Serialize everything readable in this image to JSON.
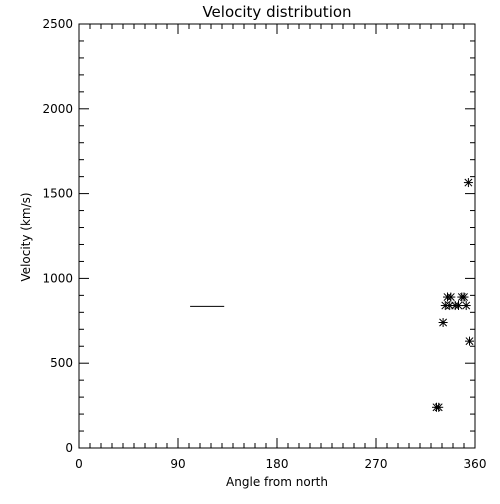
{
  "chart_data": {
    "type": "scatter",
    "title": "Velocity distribution",
    "xlabel": "Angle from north",
    "ylabel": "Velocity (km/s)",
    "xlim": [
      0,
      360
    ],
    "ylim": [
      0,
      2500
    ],
    "x_ticks": [
      0,
      90,
      180,
      270,
      360
    ],
    "y_ticks": [
      0,
      500,
      1000,
      1500,
      2000,
      2500
    ],
    "x_minor_step": 10,
    "y_minor_step": 100,
    "grid": false,
    "legend": "none",
    "colors": {
      "ink": "#000000",
      "background": "#ffffff"
    },
    "series": [
      {
        "marker": "asterisk",
        "points": [
          {
            "x": 327,
            "y": 240
          },
          {
            "x": 325,
            "y": 240
          },
          {
            "x": 331,
            "y": 740
          },
          {
            "x": 333,
            "y": 840
          },
          {
            "x": 337,
            "y": 840
          },
          {
            "x": 335,
            "y": 890
          },
          {
            "x": 338,
            "y": 890
          },
          {
            "x": 342,
            "y": 840
          },
          {
            "x": 345,
            "y": 840
          },
          {
            "x": 348,
            "y": 890
          },
          {
            "x": 350,
            "y": 890
          },
          {
            "x": 352,
            "y": 840
          },
          {
            "x": 355,
            "y": 630
          },
          {
            "x": 354,
            "y": 1565
          }
        ]
      }
    ],
    "annotations": [
      {
        "type": "hline",
        "x_from": 101,
        "x_to": 132,
        "y": 835
      }
    ]
  }
}
